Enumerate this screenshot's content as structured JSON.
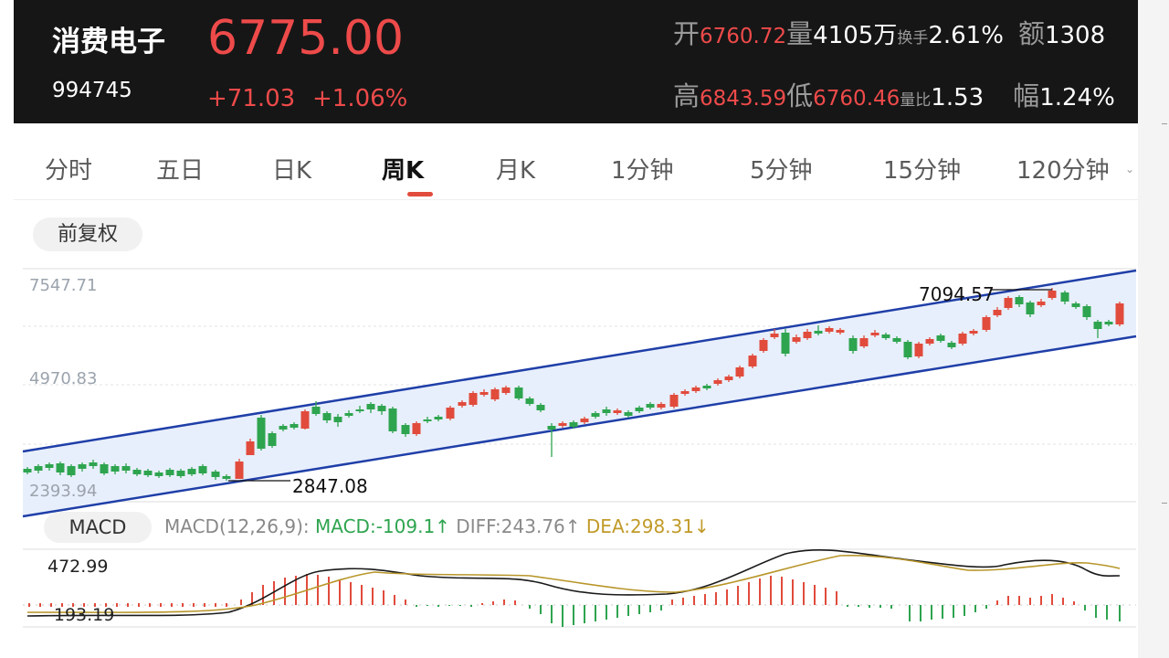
{
  "header": {
    "name": "消费电子",
    "code": "994745",
    "price": "6775.00",
    "change": "+71.03",
    "change_pct": "+1.06%",
    "open_label": "开",
    "open_value": "6760.72",
    "volume_label": "量",
    "volume_value": "4105万",
    "turnover_label": "换手",
    "turnover_value": "2.61%",
    "amount_label": "额",
    "amount_value": "1308",
    "high_label": "高",
    "high_value": "6843.59",
    "low_label": "低",
    "low_value": "6760.46",
    "vol_ratio_label": "量比",
    "vol_ratio_value": "1.53",
    "amplitude_label": "幅",
    "amplitude_value": "1.24%"
  },
  "tabs": [
    "分时",
    "五日",
    "日K",
    "周K",
    "月K",
    "1分钟",
    "5分钟",
    "15分钟",
    "120分钟"
  ],
  "active_tab": "周K",
  "adjust_button": "前复权",
  "chart": {
    "y_labels": [
      "7547.71",
      "4970.83",
      "2393.94"
    ],
    "high_annotation": "7094.57",
    "low_annotation": "2847.08"
  },
  "macd": {
    "button": "MACD",
    "params": "MACD(12,26,9):",
    "macd_text": "MACD:-109.1",
    "macd_arrow": "↑",
    "diff_text": "DIFF:243.76",
    "diff_arrow": "↑",
    "dea_text": "DEA:298.31",
    "dea_arrow": "↓",
    "y_labels": [
      "472.99",
      "-193.19"
    ]
  },
  "colors": {
    "up": "#e14b3c",
    "down": "#2ea44f",
    "channel": "#1f3fa8",
    "channel_fill": "#e8effc",
    "diff_line": "#1a1a1a",
    "dea_line": "#b8962a",
    "header_bg": "#161616",
    "accent_underline": "#e14b3c"
  },
  "icons": {
    "dropdown": "chevron-down-icon"
  }
}
